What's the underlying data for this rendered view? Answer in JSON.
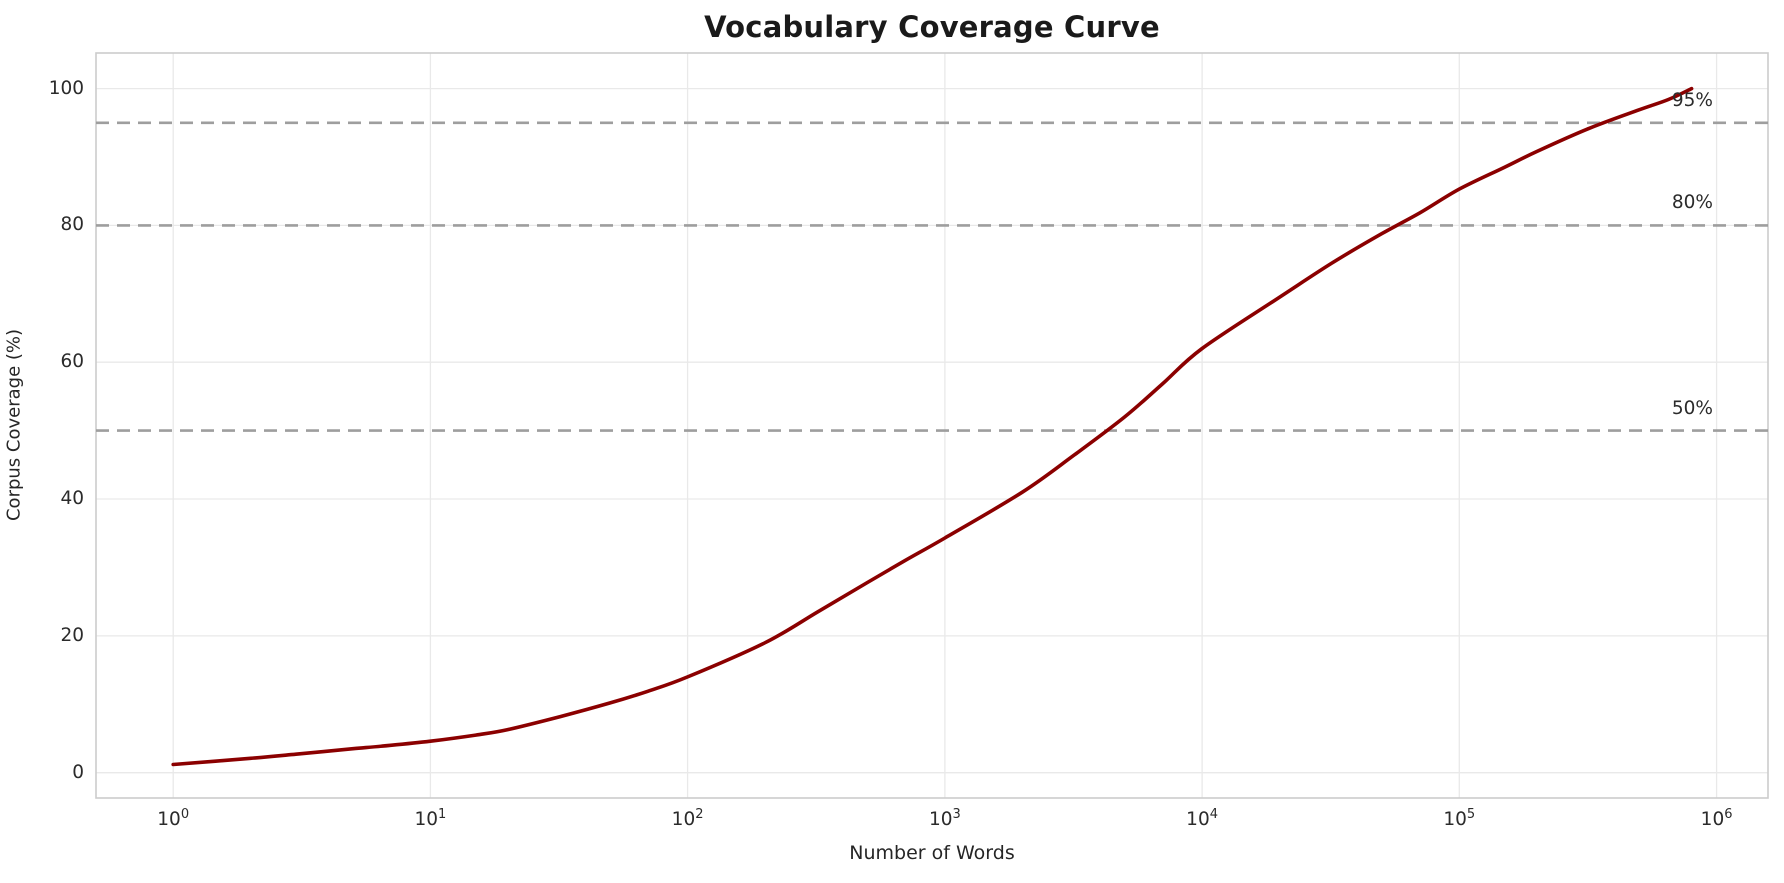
{
  "chart_data": {
    "type": "line",
    "title": "Vocabulary Coverage Curve",
    "xlabel": "Number of Words",
    "ylabel": "Corpus Coverage (%)",
    "x_scale": "log10",
    "xlim_log10": [
      -0.3,
      6.2
    ],
    "ylim": [
      -3.7,
      105.2
    ],
    "grid": true,
    "legend": "none",
    "x_ticks": [
      {
        "mantissa": "10",
        "exponent": "0"
      },
      {
        "mantissa": "10",
        "exponent": "1"
      },
      {
        "mantissa": "10",
        "exponent": "2"
      },
      {
        "mantissa": "10",
        "exponent": "3"
      },
      {
        "mantissa": "10",
        "exponent": "4"
      },
      {
        "mantissa": "10",
        "exponent": "5"
      },
      {
        "mantissa": "10",
        "exponent": "6"
      }
    ],
    "y_ticks": [
      "0",
      "20",
      "40",
      "60",
      "80",
      "100"
    ],
    "y_tick_values": [
      0,
      20,
      40,
      60,
      80,
      100
    ],
    "series": [
      {
        "name": "vocabulary-coverage",
        "color": "#8b0000",
        "line_width": 3.6,
        "points": [
          [
            1,
            1.2
          ],
          [
            2,
            2.1
          ],
          [
            3,
            2.7
          ],
          [
            5,
            3.5
          ],
          [
            7,
            4.0
          ],
          [
            10,
            4.6
          ],
          [
            15,
            5.5
          ],
          [
            20,
            6.3
          ],
          [
            32,
            8.2
          ],
          [
            50,
            10.2
          ],
          [
            70,
            11.9
          ],
          [
            100,
            14.0
          ],
          [
            200,
            19.0
          ],
          [
            320,
            23.5
          ],
          [
            500,
            27.8
          ],
          [
            700,
            31.0
          ],
          [
            1000,
            34.3
          ],
          [
            2000,
            41.0
          ],
          [
            3200,
            46.5
          ],
          [
            5000,
            52.0
          ],
          [
            7000,
            56.8
          ],
          [
            10000,
            62.0
          ],
          [
            20000,
            69.5
          ],
          [
            32000,
            74.5
          ],
          [
            50000,
            78.8
          ],
          [
            70000,
            81.8
          ],
          [
            100000,
            85.3
          ],
          [
            150000,
            88.5
          ],
          [
            200000,
            90.8
          ],
          [
            320000,
            94.2
          ],
          [
            500000,
            96.9
          ],
          [
            650000,
            98.4
          ],
          [
            800000,
            100.0
          ]
        ]
      }
    ],
    "reference_lines": [
      {
        "value": 95,
        "label": "95%"
      },
      {
        "value": 80,
        "label": "80%"
      },
      {
        "value": 50,
        "label": "50%"
      }
    ],
    "style": {
      "curve_color": "#8b0000",
      "ref_line_color": "#9e9e9e",
      "grid_color": "#e9e9e9",
      "spine_color": "#cccccc",
      "text_color": "#262626",
      "background": "#ffffff"
    }
  }
}
